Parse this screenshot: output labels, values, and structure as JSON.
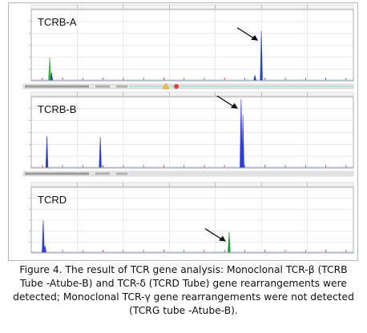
{
  "panels": [
    {
      "label": "TCRB-A"
    },
    {
      "label": "TCRB-B"
    },
    {
      "label": "TCRD"
    }
  ],
  "caption": "Figure 4. The result of TCR gene analysis: Monoclonal TCR-β (TCRB Tube -A\u0001tube-B) and TCR-δ (TCRD Tube) gene rearrangements were detected; Monoclonal TCR-γ gene rearrangements were not detected (TCRG tube -A\u0001tube-B).",
  "colors": {
    "tcrb_a_peak": "#2a3fd6",
    "tcrb_b_peak": "#2a3fd6",
    "tcrd_peak": "#1f9a2a",
    "marker_green": "#2fb52f",
    "marker_red": "#d23a3a",
    "grid": "#dcdcdc"
  },
  "icons": [
    "arrow-icon",
    "warning-icon",
    "stop-icon"
  ],
  "chart_data": [
    {
      "type": "line",
      "title": "TCRB-A",
      "xlabel": "",
      "ylabel": "",
      "xlim": [
        75,
        425
      ],
      "ylim": [
        0,
        1000
      ],
      "grid": true,
      "peaks": [
        {
          "x": 95,
          "y": 330,
          "color": "#2fb52f"
        },
        {
          "x": 97,
          "y": 120,
          "color": "#2a3fd6"
        },
        {
          "x": 325,
          "y": 700,
          "color": "#2a3fd6"
        },
        {
          "x": 318,
          "y": 80,
          "color": "#2a3fd6"
        }
      ],
      "arrow_at_x": 325
    },
    {
      "type": "line",
      "title": "TCRB-B",
      "xlabel": "",
      "ylabel": "",
      "xlim": [
        75,
        425
      ],
      "ylim": [
        0,
        1600
      ],
      "grid": true,
      "peaks": [
        {
          "x": 92,
          "y": 720,
          "color": "#2a3fd6"
        },
        {
          "x": 150,
          "y": 700,
          "color": "#2a3fd6"
        },
        {
          "x": 303,
          "y": 1550,
          "color": "#2a3fd6"
        },
        {
          "x": 305,
          "y": 1200,
          "color": "#2a3fd6"
        }
      ],
      "arrow_at_x": 303
    },
    {
      "type": "line",
      "title": "TCRD",
      "xlabel": "",
      "ylabel": "",
      "xlim": [
        75,
        425
      ],
      "ylim": [
        0,
        1400
      ],
      "grid": true,
      "peaks": [
        {
          "x": 88,
          "y": 700,
          "color": "#2a3fd6"
        },
        {
          "x": 90,
          "y": 150,
          "color": "#2a3fd6"
        },
        {
          "x": 290,
          "y": 450,
          "color": "#1f9a2a"
        }
      ],
      "arrow_at_x": 290
    }
  ]
}
